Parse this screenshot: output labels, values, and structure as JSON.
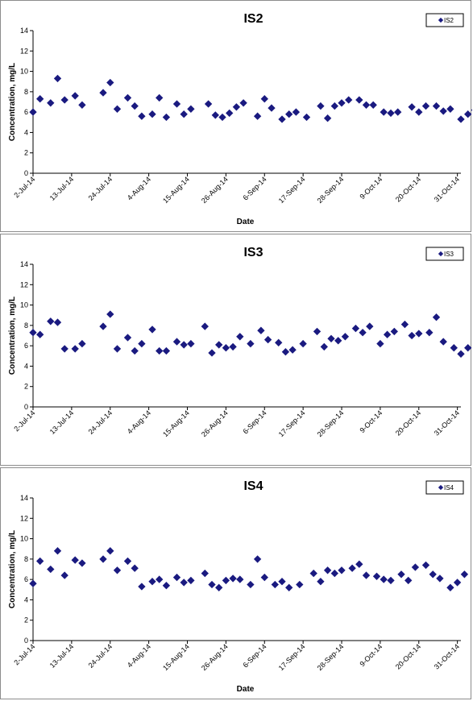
{
  "colors": {
    "marker": "#1a1a80",
    "axis": "#000000",
    "panel_border": "#8c8c8c"
  },
  "chart_data": [
    {
      "type": "scatter",
      "title": "IS2",
      "xlabel": "Date",
      "ylabel": "Concentration, mg/L",
      "ylim": [
        0,
        14
      ],
      "yticks": [
        "0",
        "2",
        "4",
        "6",
        "8",
        "10",
        "12",
        "14"
      ],
      "xlim": [
        "2014-07-02",
        "2014-11-01"
      ],
      "xticks": [
        "2-Jul-14",
        "13-Jul-14",
        "24-Jul-14",
        "4-Aug-14",
        "15-Aug-14",
        "26-Aug-14",
        "6-Sep-14",
        "17-Sep-14",
        "28-Sep-14",
        "9-Oct-14",
        "20-Oct-14",
        "31-Oct-14"
      ],
      "legend": {
        "label": "IS2",
        "position": "top-right"
      },
      "grid": false,
      "series": [
        {
          "name": "IS2",
          "points": [
            [
              "2014-07-02",
              6.0
            ],
            [
              "2014-07-04",
              7.3
            ],
            [
              "2014-07-07",
              6.9
            ],
            [
              "2014-07-09",
              9.3
            ],
            [
              "2014-07-11",
              7.2
            ],
            [
              "2014-07-14",
              7.6
            ],
            [
              "2014-07-16",
              6.7
            ],
            [
              "2014-07-22",
              7.9
            ],
            [
              "2014-07-24",
              8.9
            ],
            [
              "2014-07-26",
              6.3
            ],
            [
              "2014-07-29",
              7.4
            ],
            [
              "2014-07-31",
              6.6
            ],
            [
              "2014-08-02",
              5.6
            ],
            [
              "2014-08-05",
              5.8
            ],
            [
              "2014-08-07",
              7.4
            ],
            [
              "2014-08-09",
              5.5
            ],
            [
              "2014-08-12",
              6.8
            ],
            [
              "2014-08-14",
              5.8
            ],
            [
              "2014-08-16",
              6.3
            ],
            [
              "2014-08-21",
              6.8
            ],
            [
              "2014-08-23",
              5.7
            ],
            [
              "2014-08-25",
              5.5
            ],
            [
              "2014-08-27",
              5.9
            ],
            [
              "2014-08-29",
              6.5
            ],
            [
              "2014-08-31",
              6.9
            ],
            [
              "2014-09-04",
              5.6
            ],
            [
              "2014-09-06",
              7.3
            ],
            [
              "2014-09-08",
              6.4
            ],
            [
              "2014-09-11",
              5.3
            ],
            [
              "2014-09-13",
              5.8
            ],
            [
              "2014-09-15",
              6.0
            ],
            [
              "2014-09-18",
              5.5
            ],
            [
              "2014-09-22",
              6.6
            ],
            [
              "2014-09-24",
              5.4
            ],
            [
              "2014-09-26",
              6.6
            ],
            [
              "2014-09-28",
              6.9
            ],
            [
              "2014-09-30",
              7.2
            ],
            [
              "2014-10-03",
              7.2
            ],
            [
              "2014-10-05",
              6.7
            ],
            [
              "2014-10-07",
              6.7
            ],
            [
              "2014-10-10",
              6.0
            ],
            [
              "2014-10-12",
              5.9
            ],
            [
              "2014-10-14",
              6.0
            ],
            [
              "2014-10-18",
              6.5
            ],
            [
              "2014-10-20",
              6.0
            ],
            [
              "2014-10-22",
              6.6
            ],
            [
              "2014-10-25",
              6.6
            ],
            [
              "2014-10-27",
              6.1
            ],
            [
              "2014-10-29",
              6.3
            ],
            [
              "2014-11-01",
              5.3
            ],
            [
              "2014-11-03",
              5.8
            ],
            [
              "2014-11-05",
              6.2
            ]
          ]
        }
      ]
    },
    {
      "type": "scatter",
      "title": "IS3",
      "xlabel": "",
      "ylabel": "Concentration, mg/L",
      "ylim": [
        0,
        14
      ],
      "yticks": [
        "0",
        "2",
        "4",
        "6",
        "8",
        "10",
        "12",
        "14"
      ],
      "xlim": [
        "2014-07-02",
        "2014-11-01"
      ],
      "xticks": [
        "2-Jul-14",
        "13-Jul-14",
        "24-Jul-14",
        "4-Aug-14",
        "15-Aug-14",
        "26-Aug-14",
        "6-Sep-14",
        "17-Sep-14",
        "28-Sep-14",
        "9-Oct-14",
        "20-Oct-14",
        "31-Oct-14"
      ],
      "legend": {
        "label": "IS3",
        "position": "top-right"
      },
      "grid": false,
      "series": [
        {
          "name": "IS3",
          "points": [
            [
              "2014-07-02",
              7.3
            ],
            [
              "2014-07-04",
              7.1
            ],
            [
              "2014-07-07",
              8.4
            ],
            [
              "2014-07-09",
              8.3
            ],
            [
              "2014-07-11",
              5.7
            ],
            [
              "2014-07-14",
              5.7
            ],
            [
              "2014-07-16",
              6.2
            ],
            [
              "2014-07-22",
              7.9
            ],
            [
              "2014-07-24",
              9.1
            ],
            [
              "2014-07-26",
              5.7
            ],
            [
              "2014-07-29",
              6.8
            ],
            [
              "2014-07-31",
              5.5
            ],
            [
              "2014-08-02",
              6.2
            ],
            [
              "2014-08-05",
              7.6
            ],
            [
              "2014-08-07",
              5.5
            ],
            [
              "2014-08-09",
              5.5
            ],
            [
              "2014-08-12",
              6.4
            ],
            [
              "2014-08-14",
              6.1
            ],
            [
              "2014-08-16",
              6.2
            ],
            [
              "2014-08-20",
              7.9
            ],
            [
              "2014-08-22",
              5.3
            ],
            [
              "2014-08-24",
              6.1
            ],
            [
              "2014-08-26",
              5.8
            ],
            [
              "2014-08-28",
              5.9
            ],
            [
              "2014-08-30",
              6.9
            ],
            [
              "2014-09-02",
              6.2
            ],
            [
              "2014-09-05",
              7.5
            ],
            [
              "2014-09-07",
              6.6
            ],
            [
              "2014-09-10",
              6.3
            ],
            [
              "2014-09-12",
              5.4
            ],
            [
              "2014-09-14",
              5.6
            ],
            [
              "2014-09-17",
              6.2
            ],
            [
              "2014-09-21",
              7.4
            ],
            [
              "2014-09-23",
              5.9
            ],
            [
              "2014-09-25",
              6.7
            ],
            [
              "2014-09-27",
              6.5
            ],
            [
              "2014-09-29",
              6.9
            ],
            [
              "2014-10-02",
              7.7
            ],
            [
              "2014-10-04",
              7.3
            ],
            [
              "2014-10-06",
              7.9
            ],
            [
              "2014-10-09",
              6.2
            ],
            [
              "2014-10-11",
              7.1
            ],
            [
              "2014-10-13",
              7.4
            ],
            [
              "2014-10-16",
              8.1
            ],
            [
              "2014-10-18",
              7.0
            ],
            [
              "2014-10-20",
              7.2
            ],
            [
              "2014-10-23",
              7.3
            ],
            [
              "2014-10-25",
              8.8
            ],
            [
              "2014-10-27",
              6.4
            ],
            [
              "2014-10-30",
              5.8
            ],
            [
              "2014-11-01",
              5.2
            ],
            [
              "2014-11-03",
              5.8
            ]
          ]
        }
      ]
    },
    {
      "type": "scatter",
      "title": "IS4",
      "xlabel": "Date",
      "ylabel": "Concentration, mg/L",
      "ylim": [
        0,
        14
      ],
      "yticks": [
        "0",
        "2",
        "4",
        "6",
        "8",
        "10",
        "12",
        "14"
      ],
      "xlim": [
        "2014-07-02",
        "2014-11-01"
      ],
      "xticks": [
        "2-Jul-14",
        "13-Jul-14",
        "24-Jul-14",
        "4-Aug-14",
        "15-Aug-14",
        "26-Aug-14",
        "6-Sep-14",
        "17-Sep-14",
        "28-Sep-14",
        "9-Oct-14",
        "20-Oct-14",
        "31-Oct-14"
      ],
      "legend": {
        "label": "IS4",
        "position": "top-right"
      },
      "grid": false,
      "series": [
        {
          "name": "IS4",
          "points": [
            [
              "2014-07-02",
              5.6
            ],
            [
              "2014-07-04",
              7.8
            ],
            [
              "2014-07-07",
              7.0
            ],
            [
              "2014-07-09",
              8.8
            ],
            [
              "2014-07-11",
              6.4
            ],
            [
              "2014-07-14",
              7.9
            ],
            [
              "2014-07-16",
              7.6
            ],
            [
              "2014-07-22",
              8.0
            ],
            [
              "2014-07-24",
              8.8
            ],
            [
              "2014-07-26",
              6.9
            ],
            [
              "2014-07-29",
              7.8
            ],
            [
              "2014-07-31",
              7.1
            ],
            [
              "2014-08-02",
              5.3
            ],
            [
              "2014-08-05",
              5.8
            ],
            [
              "2014-08-07",
              6.0
            ],
            [
              "2014-08-09",
              5.4
            ],
            [
              "2014-08-12",
              6.2
            ],
            [
              "2014-08-14",
              5.7
            ],
            [
              "2014-08-16",
              5.9
            ],
            [
              "2014-08-20",
              6.6
            ],
            [
              "2014-08-22",
              5.5
            ],
            [
              "2014-08-24",
              5.2
            ],
            [
              "2014-08-26",
              5.9
            ],
            [
              "2014-08-28",
              6.1
            ],
            [
              "2014-08-30",
              6.0
            ],
            [
              "2014-09-02",
              5.5
            ],
            [
              "2014-09-04",
              8.0
            ],
            [
              "2014-09-06",
              6.2
            ],
            [
              "2014-09-09",
              5.5
            ],
            [
              "2014-09-11",
              5.8
            ],
            [
              "2014-09-13",
              5.2
            ],
            [
              "2014-09-16",
              5.5
            ],
            [
              "2014-09-20",
              6.6
            ],
            [
              "2014-09-22",
              5.8
            ],
            [
              "2014-09-24",
              6.9
            ],
            [
              "2014-09-26",
              6.6
            ],
            [
              "2014-09-28",
              6.9
            ],
            [
              "2014-10-01",
              7.1
            ],
            [
              "2014-10-03",
              7.5
            ],
            [
              "2014-10-05",
              6.4
            ],
            [
              "2014-10-08",
              6.3
            ],
            [
              "2014-10-10",
              6.0
            ],
            [
              "2014-10-12",
              5.9
            ],
            [
              "2014-10-15",
              6.5
            ],
            [
              "2014-10-17",
              5.9
            ],
            [
              "2014-10-19",
              7.2
            ],
            [
              "2014-10-22",
              7.4
            ],
            [
              "2014-10-24",
              6.5
            ],
            [
              "2014-10-26",
              6.1
            ],
            [
              "2014-10-29",
              5.2
            ],
            [
              "2014-10-31",
              5.7
            ],
            [
              "2014-11-02",
              6.5
            ]
          ]
        }
      ]
    }
  ]
}
